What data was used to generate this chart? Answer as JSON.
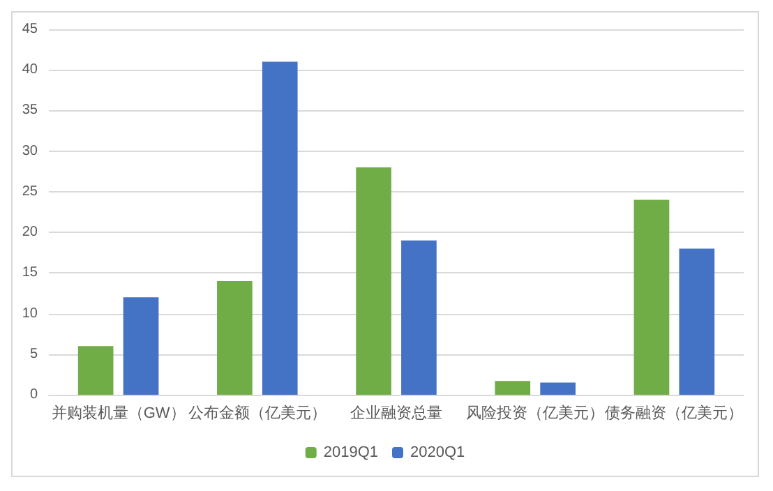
{
  "chart_data": {
    "type": "bar",
    "categories": [
      "并购装机量（GW）",
      "公布金额（亿美元）",
      "企业融资总量",
      "风险投资（亿美元）",
      "债务融资（亿美元）"
    ],
    "series": [
      {
        "name": "2019Q1",
        "color": "#70ad47",
        "values": [
          6,
          14,
          28,
          1.7,
          24
        ]
      },
      {
        "name": "2020Q1",
        "color": "#4472c4",
        "values": [
          12,
          41,
          19,
          1.5,
          18
        ]
      }
    ],
    "ylim": [
      0,
      45
    ],
    "yticks": [
      0,
      5,
      10,
      15,
      20,
      25,
      30,
      35,
      40,
      45
    ],
    "grid": "y",
    "legend": "bottom"
  }
}
